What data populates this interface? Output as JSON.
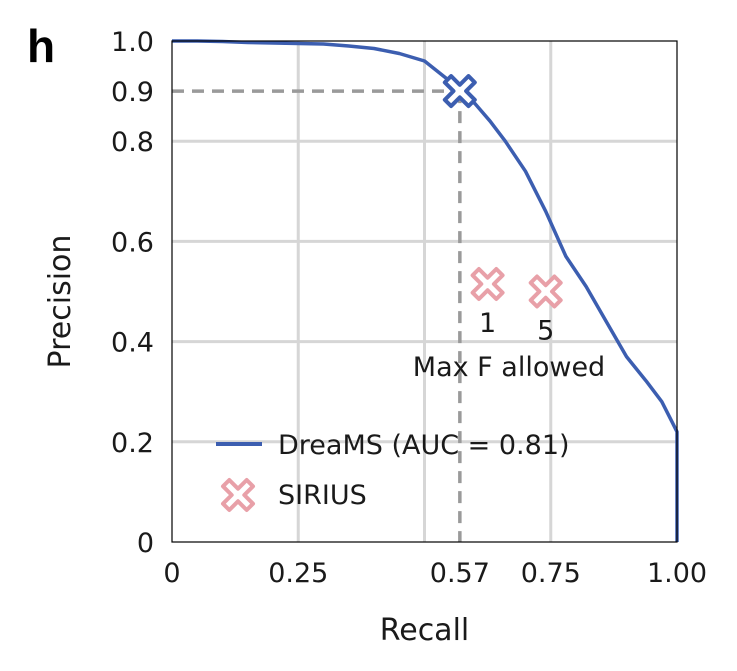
{
  "panel_label": "h",
  "chart_data": {
    "type": "line",
    "title": "",
    "xlabel": "Recall",
    "ylabel": "Precision",
    "xlim": [
      0,
      1
    ],
    "ylim": [
      0,
      1
    ],
    "grid": true,
    "x_ticks": [
      {
        "value": 0,
        "label": "0"
      },
      {
        "value": 0.25,
        "label": "0.25"
      },
      {
        "value": 0.57,
        "label": "0.57"
      },
      {
        "value": 0.75,
        "label": "0.75"
      },
      {
        "value": 1.0,
        "label": "1.00"
      }
    ],
    "y_ticks": [
      {
        "value": 0,
        "label": "0"
      },
      {
        "value": 0.2,
        "label": "0.2"
      },
      {
        "value": 0.4,
        "label": "0.4"
      },
      {
        "value": 0.6,
        "label": "0.6"
      },
      {
        "value": 0.8,
        "label": "0.8"
      },
      {
        "value": 0.9,
        "label": "0.9"
      },
      {
        "value": 1.0,
        "label": "1.0"
      }
    ],
    "series": [
      {
        "name": "DreaMS (AUC = 0.81)",
        "type": "line",
        "color": "#3c5eb0",
        "x": [
          0,
          0.05,
          0.1,
          0.15,
          0.2,
          0.25,
          0.3,
          0.35,
          0.4,
          0.45,
          0.5,
          0.55,
          0.57,
          0.6,
          0.63,
          0.66,
          0.7,
          0.74,
          0.78,
          0.82,
          0.86,
          0.9,
          0.94,
          0.97,
          0.99,
          1.0,
          1.0
        ],
        "y": [
          1.0,
          1.0,
          0.999,
          0.997,
          0.996,
          0.995,
          0.994,
          0.99,
          0.985,
          0.975,
          0.96,
          0.92,
          0.9,
          0.875,
          0.84,
          0.8,
          0.74,
          0.66,
          0.57,
          0.51,
          0.44,
          0.37,
          0.32,
          0.28,
          0.24,
          0.22,
          0.0
        ]
      },
      {
        "name": "SIRIUS",
        "type": "scatter",
        "color": "#e8a0a8",
        "points": [
          {
            "x": 0.625,
            "y": 0.515,
            "label": "1"
          },
          {
            "x": 0.74,
            "y": 0.5,
            "label": "5"
          }
        ]
      }
    ],
    "highlight": {
      "x": 0.57,
      "y": 0.9,
      "color": "#3c5eb0",
      "guide_color": "#9a9a9a"
    },
    "annotations": [
      {
        "text": "Max F allowed"
      }
    ],
    "legend_position": "bottom-left"
  }
}
